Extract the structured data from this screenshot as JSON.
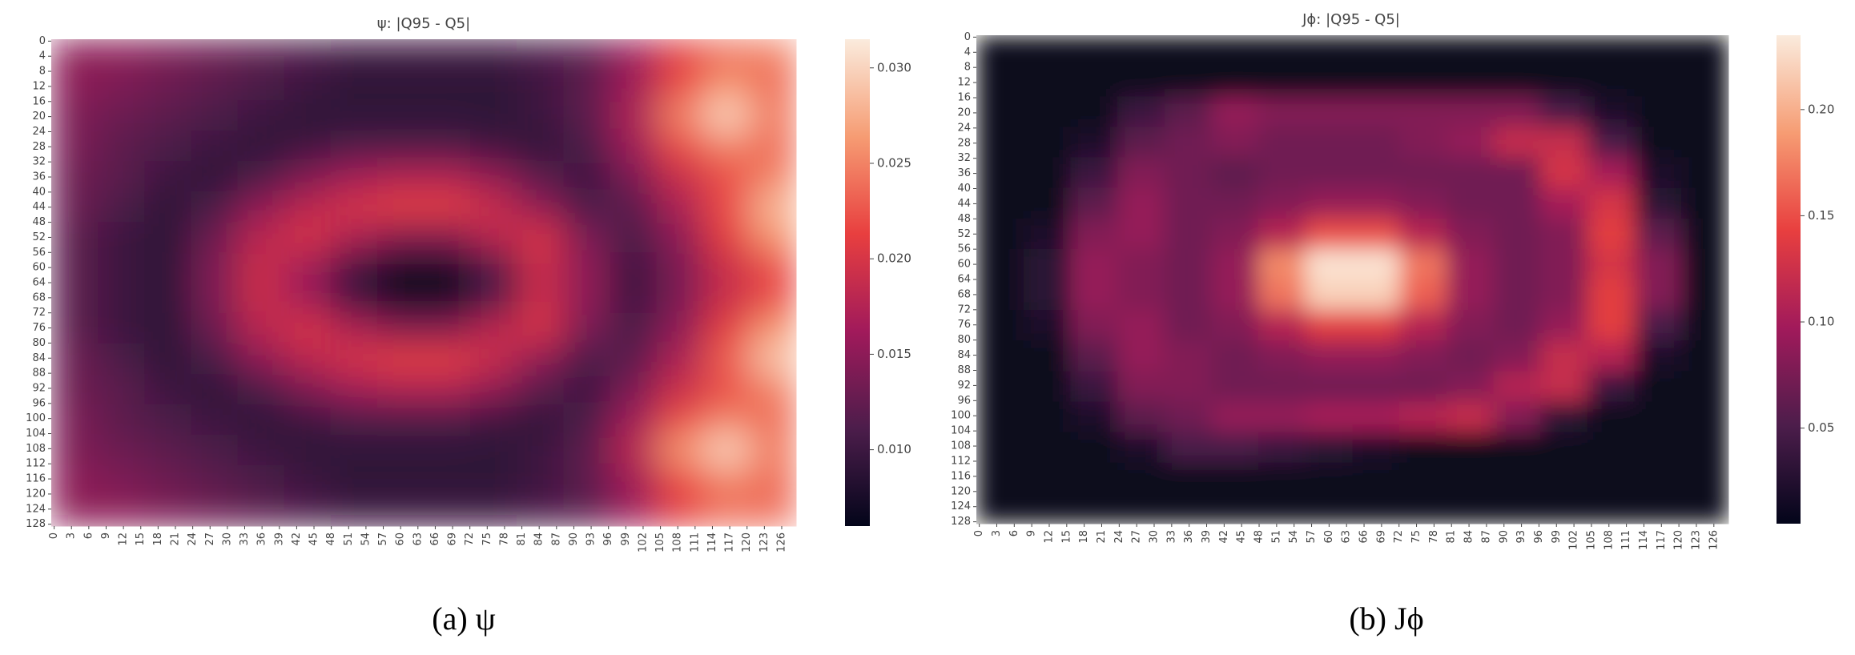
{
  "chart_data": [
    {
      "type": "heatmap",
      "title": "ψ: |Q95 - Q5|",
      "caption": "(a) ψ",
      "xlim": [
        0,
        129
      ],
      "ylim": [
        0,
        129
      ],
      "xticks": [
        0,
        3,
        6,
        9,
        12,
        15,
        18,
        21,
        24,
        27,
        30,
        33,
        36,
        39,
        42,
        45,
        48,
        51,
        54,
        57,
        60,
        63,
        66,
        69,
        72,
        75,
        78,
        81,
        84,
        87,
        90,
        93,
        96,
        99,
        102,
        105,
        108,
        111,
        114,
        117,
        120,
        123,
        126
      ],
      "yticks": [
        0,
        4,
        8,
        12,
        16,
        20,
        24,
        28,
        32,
        36,
        40,
        44,
        48,
        52,
        56,
        60,
        64,
        68,
        72,
        76,
        80,
        84,
        88,
        92,
        96,
        100,
        104,
        108,
        112,
        116,
        120,
        124,
        128
      ],
      "clim": [
        0.006,
        0.0315
      ],
      "cticks": [
        {
          "value": 0.01,
          "label": "0.010"
        },
        {
          "value": 0.015,
          "label": "0.015"
        },
        {
          "value": 0.02,
          "label": "0.020"
        },
        {
          "value": 0.025,
          "label": "0.025"
        },
        {
          "value": 0.03,
          "label": "0.030"
        }
      ],
      "colormap": [
        "#03051a",
        "#4c1d4b",
        "#a11a5b",
        "#e83f3f",
        "#f69c73",
        "#faebdd"
      ],
      "z": [
        [
          0.015,
          0.015,
          0.014,
          0.013,
          0.012,
          0.011,
          0.01,
          0.01,
          0.01,
          0.01,
          0.011,
          0.012,
          0.016,
          0.021,
          0.024,
          0.025
        ],
        [
          0.015,
          0.014,
          0.013,
          0.012,
          0.011,
          0.01,
          0.009,
          0.009,
          0.009,
          0.009,
          0.01,
          0.012,
          0.016,
          0.022,
          0.026,
          0.024
        ],
        [
          0.014,
          0.013,
          0.012,
          0.011,
          0.01,
          0.009,
          0.009,
          0.009,
          0.009,
          0.009,
          0.01,
          0.012,
          0.017,
          0.025,
          0.03,
          0.025
        ],
        [
          0.014,
          0.012,
          0.011,
          0.01,
          0.009,
          0.01,
          0.011,
          0.011,
          0.011,
          0.01,
          0.009,
          0.011,
          0.016,
          0.022,
          0.025,
          0.024
        ],
        [
          0.013,
          0.012,
          0.01,
          0.009,
          0.011,
          0.014,
          0.016,
          0.017,
          0.017,
          0.015,
          0.012,
          0.01,
          0.014,
          0.019,
          0.022,
          0.025
        ],
        [
          0.013,
          0.011,
          0.009,
          0.011,
          0.015,
          0.018,
          0.02,
          0.021,
          0.021,
          0.019,
          0.015,
          0.011,
          0.012,
          0.017,
          0.022,
          0.028
        ],
        [
          0.012,
          0.01,
          0.009,
          0.013,
          0.018,
          0.02,
          0.017,
          0.014,
          0.014,
          0.018,
          0.02,
          0.014,
          0.011,
          0.015,
          0.021,
          0.026
        ],
        [
          0.012,
          0.01,
          0.009,
          0.014,
          0.019,
          0.016,
          0.01,
          0.007,
          0.007,
          0.011,
          0.019,
          0.015,
          0.01,
          0.014,
          0.019,
          0.022
        ],
        [
          0.012,
          0.01,
          0.009,
          0.014,
          0.019,
          0.016,
          0.01,
          0.007,
          0.007,
          0.011,
          0.019,
          0.015,
          0.01,
          0.014,
          0.019,
          0.022
        ],
        [
          0.012,
          0.01,
          0.009,
          0.013,
          0.018,
          0.02,
          0.017,
          0.014,
          0.014,
          0.018,
          0.02,
          0.014,
          0.011,
          0.015,
          0.021,
          0.026
        ],
        [
          0.013,
          0.011,
          0.009,
          0.011,
          0.015,
          0.018,
          0.02,
          0.021,
          0.021,
          0.019,
          0.015,
          0.011,
          0.012,
          0.017,
          0.023,
          0.029
        ],
        [
          0.013,
          0.012,
          0.01,
          0.009,
          0.011,
          0.014,
          0.016,
          0.017,
          0.017,
          0.015,
          0.012,
          0.01,
          0.014,
          0.019,
          0.022,
          0.025
        ],
        [
          0.014,
          0.012,
          0.011,
          0.01,
          0.009,
          0.01,
          0.011,
          0.011,
          0.011,
          0.01,
          0.009,
          0.011,
          0.016,
          0.022,
          0.025,
          0.024
        ],
        [
          0.014,
          0.013,
          0.012,
          0.011,
          0.01,
          0.009,
          0.009,
          0.009,
          0.009,
          0.009,
          0.01,
          0.012,
          0.018,
          0.026,
          0.03,
          0.025
        ],
        [
          0.015,
          0.014,
          0.013,
          0.012,
          0.011,
          0.01,
          0.009,
          0.009,
          0.009,
          0.009,
          0.01,
          0.012,
          0.016,
          0.022,
          0.025,
          0.024
        ],
        [
          0.015,
          0.015,
          0.014,
          0.013,
          0.012,
          0.011,
          0.01,
          0.01,
          0.01,
          0.01,
          0.011,
          0.012,
          0.016,
          0.021,
          0.024,
          0.024
        ]
      ]
    },
    {
      "type": "heatmap",
      "title": "Jϕ: |Q95 - Q5|",
      "caption": "(b) Jϕ",
      "xlim": [
        0,
        129
      ],
      "ylim": [
        0,
        129
      ],
      "xticks": [
        0,
        3,
        6,
        9,
        12,
        15,
        18,
        21,
        24,
        27,
        30,
        33,
        36,
        39,
        42,
        45,
        48,
        51,
        54,
        57,
        60,
        63,
        66,
        69,
        72,
        75,
        78,
        81,
        84,
        87,
        90,
        93,
        96,
        99,
        102,
        105,
        108,
        111,
        114,
        117,
        120,
        123,
        126
      ],
      "yticks": [
        0,
        4,
        8,
        12,
        16,
        20,
        24,
        28,
        32,
        36,
        40,
        44,
        48,
        52,
        56,
        60,
        64,
        68,
        72,
        76,
        80,
        84,
        88,
        92,
        96,
        100,
        104,
        108,
        112,
        116,
        120,
        124,
        128
      ],
      "clim": [
        0.005,
        0.235
      ],
      "cticks": [
        0.05,
        {
          "value": 0.1,
          "label": "0.10"
        },
        0.15,
        {
          "value": 0.2,
          "label": "0.20"
        }
      ],
      "colormap": [
        "#03051a",
        "#4c1d4b",
        "#a11a5b",
        "#e83f3f",
        "#f69c73",
        "#faebdd"
      ],
      "z": [
        [
          0.01,
          0.01,
          0.01,
          0.01,
          0.01,
          0.01,
          0.01,
          0.01,
          0.01,
          0.01,
          0.01,
          0.01,
          0.01,
          0.01,
          0.01,
          0.01
        ],
        [
          0.01,
          0.01,
          0.01,
          0.01,
          0.01,
          0.01,
          0.01,
          0.01,
          0.01,
          0.01,
          0.01,
          0.01,
          0.01,
          0.01,
          0.01,
          0.01
        ],
        [
          0.01,
          0.01,
          0.01,
          0.04,
          0.06,
          0.09,
          0.08,
          0.08,
          0.08,
          0.08,
          0.08,
          0.08,
          0.05,
          0.02,
          0.01,
          0.01
        ],
        [
          0.01,
          0.01,
          0.02,
          0.06,
          0.07,
          0.08,
          0.07,
          0.07,
          0.07,
          0.08,
          0.09,
          0.12,
          0.12,
          0.05,
          0.01,
          0.01
        ],
        [
          0.01,
          0.01,
          0.04,
          0.08,
          0.07,
          0.06,
          0.07,
          0.07,
          0.07,
          0.07,
          0.07,
          0.07,
          0.13,
          0.1,
          0.02,
          0.01
        ],
        [
          0.01,
          0.01,
          0.06,
          0.09,
          0.07,
          0.07,
          0.08,
          0.09,
          0.09,
          0.08,
          0.07,
          0.07,
          0.1,
          0.13,
          0.03,
          0.01
        ],
        [
          0.01,
          0.02,
          0.08,
          0.09,
          0.07,
          0.08,
          0.11,
          0.15,
          0.15,
          0.11,
          0.08,
          0.07,
          0.08,
          0.14,
          0.06,
          0.01
        ],
        [
          0.01,
          0.03,
          0.09,
          0.08,
          0.07,
          0.09,
          0.18,
          0.23,
          0.23,
          0.17,
          0.09,
          0.07,
          0.08,
          0.13,
          0.08,
          0.01
        ],
        [
          0.01,
          0.03,
          0.09,
          0.08,
          0.07,
          0.09,
          0.17,
          0.22,
          0.22,
          0.16,
          0.09,
          0.07,
          0.08,
          0.14,
          0.08,
          0.01
        ],
        [
          0.01,
          0.02,
          0.08,
          0.09,
          0.07,
          0.08,
          0.11,
          0.14,
          0.14,
          0.11,
          0.08,
          0.07,
          0.09,
          0.14,
          0.05,
          0.01
        ],
        [
          0.01,
          0.01,
          0.06,
          0.09,
          0.08,
          0.07,
          0.08,
          0.09,
          0.09,
          0.08,
          0.07,
          0.08,
          0.12,
          0.11,
          0.02,
          0.01
        ],
        [
          0.01,
          0.01,
          0.04,
          0.08,
          0.08,
          0.07,
          0.07,
          0.07,
          0.07,
          0.07,
          0.08,
          0.11,
          0.12,
          0.04,
          0.01,
          0.01
        ],
        [
          0.01,
          0.01,
          0.02,
          0.06,
          0.07,
          0.09,
          0.09,
          0.1,
          0.1,
          0.11,
          0.12,
          0.08,
          0.03,
          0.01,
          0.01,
          0.01
        ],
        [
          0.01,
          0.01,
          0.01,
          0.02,
          0.05,
          0.05,
          0.04,
          0.03,
          0.02,
          0.01,
          0.01,
          0.01,
          0.01,
          0.01,
          0.01,
          0.01
        ],
        [
          0.01,
          0.01,
          0.01,
          0.01,
          0.01,
          0.01,
          0.01,
          0.01,
          0.01,
          0.01,
          0.01,
          0.01,
          0.01,
          0.01,
          0.01,
          0.01
        ],
        [
          0.01,
          0.01,
          0.01,
          0.01,
          0.01,
          0.01,
          0.01,
          0.01,
          0.01,
          0.01,
          0.01,
          0.01,
          0.01,
          0.01,
          0.01,
          0.01
        ]
      ]
    }
  ]
}
